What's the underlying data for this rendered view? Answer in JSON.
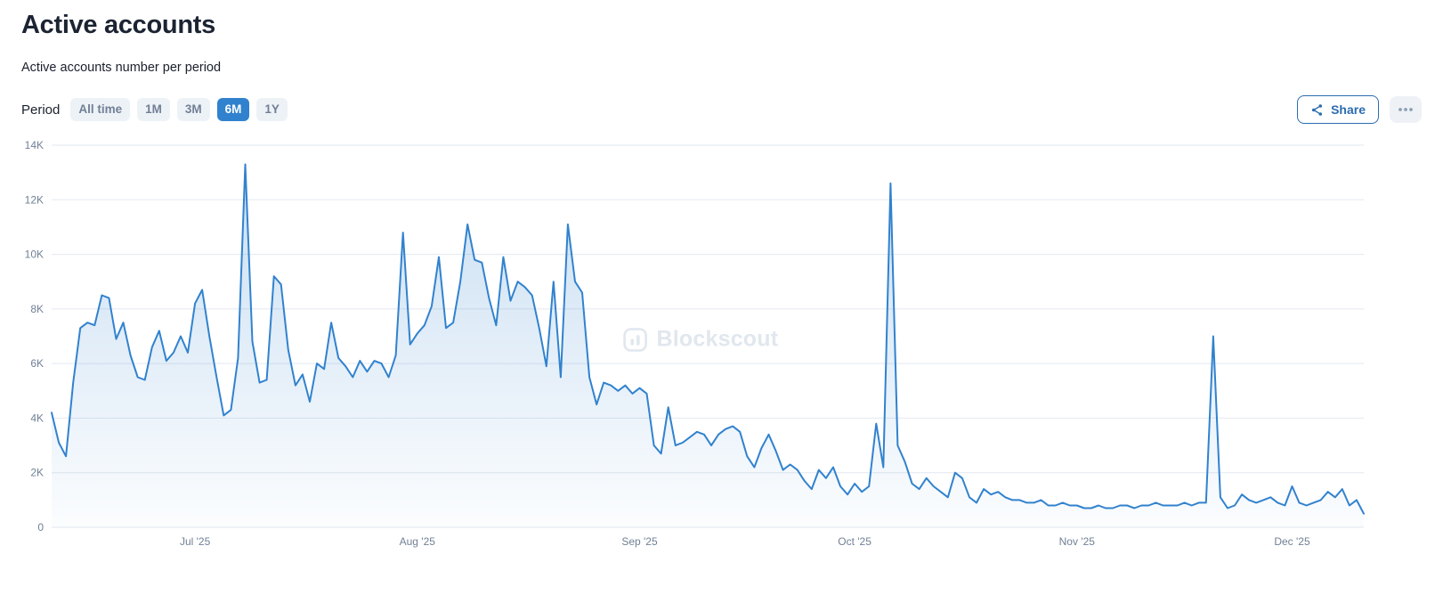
{
  "header": {
    "title": "Active accounts",
    "subtitle": "Active accounts number per period"
  },
  "period": {
    "label": "Period",
    "options": [
      "All time",
      "1M",
      "3M",
      "6M",
      "1Y"
    ],
    "selected": "6M"
  },
  "actions": {
    "share_label": "Share",
    "more_menu_icon": "ellipsis-icon",
    "share_icon": "share-nodes-icon"
  },
  "watermark": "Blockscout",
  "colors": {
    "accent": "#2b6cb0",
    "selected_period_bg": "#3182ce",
    "line_blue": "#3182ce",
    "grid_gray": "#e2e8f0",
    "tick_text": "#718096"
  },
  "chart_data": {
    "type": "area",
    "title": "Active accounts",
    "subtitle": "Active accounts number per period",
    "period_selected": "6M",
    "grid": true,
    "legend": false,
    "line_color": "#3182ce",
    "area_fill_top": "rgba(49,130,206,0.26)",
    "area_fill_bottom": "rgba(49,130,206,0.02)",
    "y_axis": {
      "min": 0,
      "max": 14000,
      "ticks": [
        {
          "value": 0,
          "label": "0"
        },
        {
          "value": 2000,
          "label": "2K"
        },
        {
          "value": 4000,
          "label": "4K"
        },
        {
          "value": 6000,
          "label": "6K"
        },
        {
          "value": 8000,
          "label": "8K"
        },
        {
          "value": 10000,
          "label": "10K"
        },
        {
          "value": 12000,
          "label": "12K"
        },
        {
          "value": 14000,
          "label": "14K"
        }
      ]
    },
    "x_axis": {
      "ticks": [
        {
          "index": 20,
          "label": "Jul '25"
        },
        {
          "index": 51,
          "label": "Aug '25"
        },
        {
          "index": 82,
          "label": "Sep '25"
        },
        {
          "index": 112,
          "label": "Oct '25"
        },
        {
          "index": 143,
          "label": "Nov '25"
        },
        {
          "index": 173,
          "label": "Dec '25"
        }
      ]
    },
    "values": [
      4200,
      3100,
      2600,
      5300,
      7300,
      7500,
      7400,
      8500,
      8400,
      6900,
      7500,
      6300,
      5500,
      5400,
      6600,
      7200,
      6100,
      6400,
      7000,
      6400,
      8200,
      8700,
      7000,
      5500,
      4100,
      4300,
      6200,
      13300,
      6800,
      5300,
      5400,
      9200,
      8900,
      6500,
      5200,
      5600,
      4600,
      6000,
      5800,
      7500,
      6200,
      5900,
      5500,
      6100,
      5700,
      6100,
      6000,
      5500,
      6300,
      10800,
      6700,
      7100,
      7400,
      8100,
      9900,
      7300,
      7500,
      9000,
      11100,
      9800,
      9700,
      8400,
      7400,
      9900,
      8300,
      9000,
      8800,
      8500,
      7300,
      5900,
      9000,
      5500,
      11100,
      9000,
      8600,
      5500,
      4500,
      5300,
      5200,
      5000,
      5200,
      4900,
      5100,
      4900,
      3000,
      2700,
      4400,
      3000,
      3100,
      3300,
      3500,
      3400,
      3000,
      3400,
      3600,
      3700,
      3500,
      2600,
      2200,
      2900,
      3400,
      2800,
      2100,
      2300,
      2100,
      1700,
      1400,
      2100,
      1800,
      2200,
      1500,
      1200,
      1600,
      1300,
      1500,
      3800,
      2200,
      12600,
      3000,
      2400,
      1600,
      1400,
      1800,
      1500,
      1300,
      1100,
      2000,
      1800,
      1100,
      900,
      1400,
      1200,
      1300,
      1100,
      1000,
      1000,
      900,
      900,
      1000,
      800,
      800,
      900,
      800,
      800,
      700,
      700,
      800,
      700,
      700,
      800,
      800,
      700,
      800,
      800,
      900,
      800,
      800,
      800,
      900,
      800,
      900,
      900,
      7000,
      1100,
      700,
      800,
      1200,
      1000,
      900,
      1000,
      1100,
      900,
      800,
      1500,
      900,
      800,
      900,
      1000,
      1300,
      1100,
      1400,
      800,
      1000,
      500
    ]
  }
}
